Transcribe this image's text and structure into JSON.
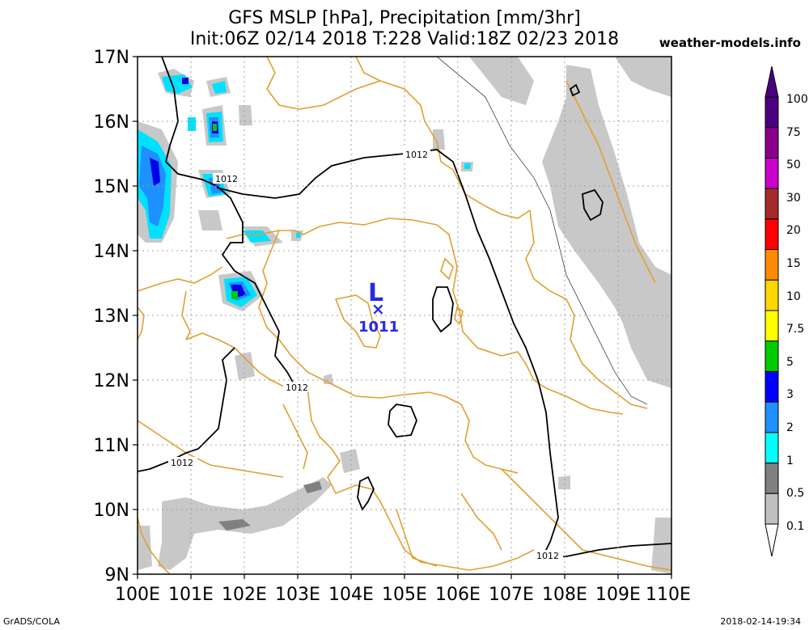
{
  "header": {
    "line1": "GFS MSLP [hPa], Precipitation [mm/3hr]",
    "line2": "Init:06Z 02/14 2018 T:228 Valid:18Z 02/23 2018",
    "site": "weather-models.info"
  },
  "footer": {
    "left": "GrADS/COLA",
    "right": "2018-02-14-19:34"
  },
  "map": {
    "lat_labels": [
      "17N",
      "16N",
      "15N",
      "14N",
      "13N",
      "12N",
      "11N",
      "10N",
      "9N"
    ],
    "lon_labels": [
      "100E",
      "101E",
      "102E",
      "103E",
      "104E",
      "105E",
      "106E",
      "107E",
      "108E",
      "109E",
      "110E"
    ],
    "isobar_labels": [
      "1012",
      "1012",
      "1012",
      "1012",
      "1012"
    ],
    "low_center": {
      "letter": "L",
      "marker": "×",
      "value": "1011"
    },
    "colors": {
      "border": "#e0a030",
      "isobar": "#000000",
      "low": "#2929e6"
    }
  },
  "colorbar": {
    "labels": [
      "100",
      "75",
      "50",
      "30",
      "20",
      "15",
      "10",
      "7.5",
      "5",
      "3",
      "2",
      "1",
      "0.5",
      "0.1"
    ],
    "colors": [
      "#4b0082",
      "#8b008b",
      "#cc00cc",
      "#a52a2a",
      "#ff0000",
      "#ff8c00",
      "#ffd700",
      "#ffff00",
      "#00cc00",
      "#0000ff",
      "#1e90ff",
      "#00ffff",
      "#808080",
      "#c0c0c0"
    ]
  }
}
